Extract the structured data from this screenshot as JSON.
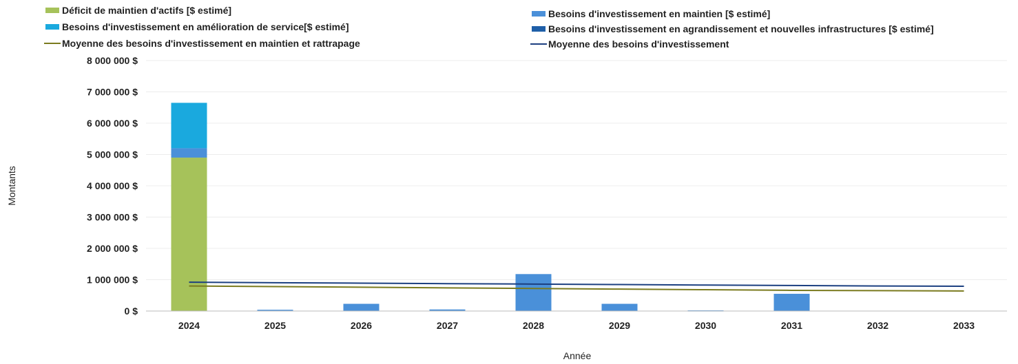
{
  "chart_data": {
    "type": "bar",
    "xlabel": "Année",
    "ylabel": "Montants",
    "ylim": [
      0,
      8000000
    ],
    "yticks": [
      0,
      1000000,
      2000000,
      3000000,
      4000000,
      5000000,
      6000000,
      7000000,
      8000000
    ],
    "ytick_labels": [
      "0 $",
      "1 000 000 $",
      "2 000 000 $",
      "3 000 000 $",
      "4 000 000 $",
      "5 000 000 $",
      "6 000 000 $",
      "7 000 000 $",
      "8 000 000 $"
    ],
    "categories": [
      "2024",
      "2025",
      "2026",
      "2027",
      "2028",
      "2029",
      "2030",
      "2031",
      "2032",
      "2033"
    ],
    "grid": true,
    "legend_position": "top",
    "series": [
      {
        "name": "Déficit de maintien d'actifs [$ estimé]",
        "kind": "bar",
        "color": "#a6c25a",
        "values": [
          4900000,
          0,
          0,
          0,
          0,
          0,
          0,
          0,
          0,
          0
        ]
      },
      {
        "name": "Besoins d'investissement en maintien [$ estimé]",
        "kind": "bar",
        "color": "#4a90d9",
        "values": [
          300000,
          40000,
          230000,
          50000,
          1180000,
          230000,
          20000,
          550000,
          0,
          0
        ]
      },
      {
        "name": "Besoins d'investissement en amélioration de service[$ estimé]",
        "kind": "bar",
        "color": "#1aa9de",
        "values": [
          1450000,
          0,
          0,
          0,
          0,
          0,
          0,
          0,
          0,
          0
        ]
      },
      {
        "name": "Besoins d'investissement en agrandissement et nouvelles infrastructures [$ estimé]",
        "kind": "bar",
        "color": "#1f5fa8",
        "values": [
          0,
          0,
          0,
          0,
          0,
          0,
          0,
          0,
          0,
          0
        ]
      },
      {
        "name": "Moyenne des besoins d'investissement en maintien et rattrapage",
        "kind": "line",
        "color": "#7a7a1e",
        "values": [
          800000,
          780000,
          760000,
          740000,
          720000,
          700000,
          680000,
          660000,
          650000,
          640000
        ]
      },
      {
        "name": "Moyenne des besoins d'investissement",
        "kind": "line",
        "color": "#1b3f80",
        "values": [
          920000,
          905000,
          890000,
          875000,
          860000,
          845000,
          830000,
          815000,
          800000,
          790000
        ]
      }
    ],
    "stack_order": [
      0,
      1,
      2,
      3
    ],
    "legend_left": [
      0,
      2,
      4
    ],
    "legend_right": [
      1,
      3,
      5
    ]
  }
}
